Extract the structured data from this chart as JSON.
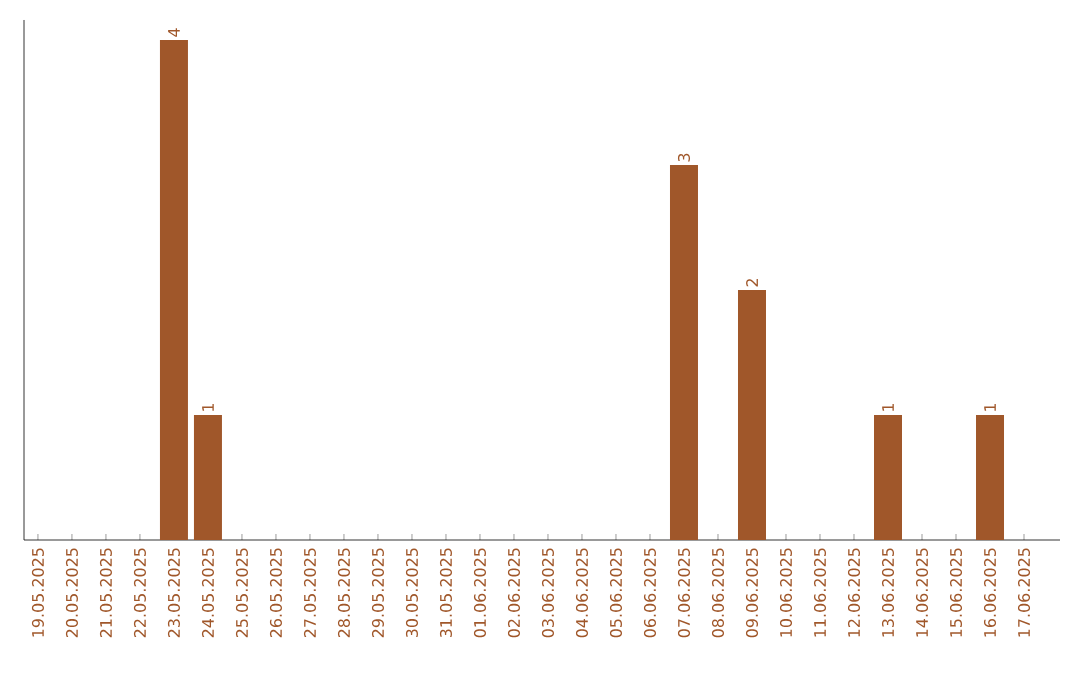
{
  "chart_data": {
    "type": "bar",
    "color": "#a0572a",
    "categories": [
      "19.05.2025",
      "20.05.2025",
      "21.05.2025",
      "22.05.2025",
      "23.05.2025",
      "24.05.2025",
      "25.05.2025",
      "26.05.2025",
      "27.05.2025",
      "28.05.2025",
      "29.05.2025",
      "30.05.2025",
      "31.05.2025",
      "01.06.2025",
      "02.06.2025",
      "03.06.2025",
      "04.06.2025",
      "05.06.2025",
      "06.06.2025",
      "07.06.2025",
      "08.06.2025",
      "09.06.2025",
      "10.06.2025",
      "11.06.2025",
      "12.06.2025",
      "13.06.2025",
      "14.06.2025",
      "15.06.2025",
      "16.06.2025",
      "17.06.2025"
    ],
    "values": [
      0,
      0,
      0,
      0,
      4,
      1,
      0,
      0,
      0,
      0,
      0,
      0,
      0,
      0,
      0,
      0,
      0,
      0,
      0,
      3,
      0,
      2,
      0,
      0,
      0,
      1,
      0,
      0,
      1,
      0
    ],
    "value_labels": [
      null,
      null,
      null,
      null,
      "4",
      "1",
      null,
      null,
      null,
      null,
      null,
      null,
      null,
      null,
      null,
      null,
      null,
      null,
      null,
      "3",
      null,
      "2",
      null,
      null,
      null,
      "1",
      null,
      null,
      "1",
      null
    ]
  }
}
